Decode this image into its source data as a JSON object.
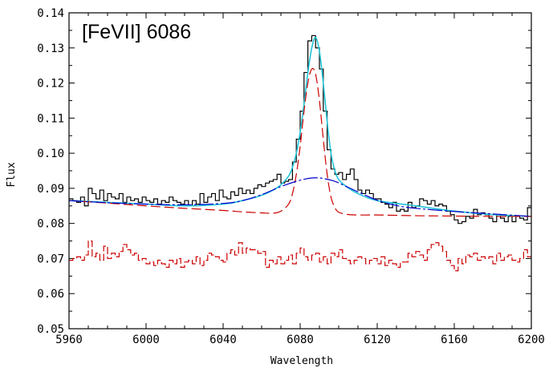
{
  "chart_data": {
    "type": "line",
    "title": "[FeVII] 6086",
    "xlabel": "Wavelength",
    "ylabel": "Flux",
    "xlim": [
      5960,
      6200
    ],
    "ylim": [
      0.05,
      0.14
    ],
    "x_ticks": [
      5960,
      6000,
      6040,
      6080,
      6120,
      6160,
      6200
    ],
    "x_tick_labels": [
      "5960",
      "6000",
      "6040",
      "6080",
      "6120",
      "6160",
      "6200"
    ],
    "y_ticks": [
      0.05,
      0.06,
      0.07,
      0.08,
      0.09,
      0.1,
      0.11,
      0.12,
      0.13,
      0.14
    ],
    "y_tick_labels": [
      "0.05",
      "0.06",
      "0.07",
      "0.08",
      "0.09",
      "0.10",
      "0.11",
      "0.12",
      "0.13",
      "0.14"
    ],
    "grid": false,
    "legend": "none",
    "series": [
      {
        "style": "step",
        "color": "#000000",
        "x": [
          5960,
          5962,
          5964,
          5966,
          5968,
          5970,
          5972,
          5974,
          5976,
          5978,
          5980,
          5982,
          5984,
          5986,
          5988,
          5990,
          5992,
          5994,
          5996,
          5998,
          6000,
          6002,
          6004,
          6006,
          6008,
          6010,
          6012,
          6014,
          6016,
          6018,
          6020,
          6022,
          6024,
          6026,
          6028,
          6030,
          6032,
          6034,
          6036,
          6038,
          6040,
          6042,
          6044,
          6046,
          6048,
          6050,
          6052,
          6054,
          6056,
          6058,
          6060,
          6062,
          6064,
          6066,
          6068,
          6070,
          6072,
          6074,
          6076,
          6078,
          6080,
          6082,
          6084,
          6086,
          6088,
          6090,
          6092,
          6094,
          6096,
          6098,
          6100,
          6102,
          6104,
          6106,
          6108,
          6110,
          6112,
          6114,
          6116,
          6118,
          6120,
          6122,
          6124,
          6126,
          6128,
          6130,
          6132,
          6134,
          6136,
          6138,
          6140,
          6142,
          6144,
          6146,
          6148,
          6150,
          6152,
          6154,
          6156,
          6158,
          6160,
          6162,
          6164,
          6166,
          6168,
          6170,
          6172,
          6174,
          6176,
          6178,
          6180,
          6182,
          6184,
          6186,
          6188,
          6190,
          6192,
          6194,
          6196,
          6198
        ],
        "y": [
          0.087,
          0.0865,
          0.086,
          0.0875,
          0.085,
          0.09,
          0.0885,
          0.087,
          0.0895,
          0.0865,
          0.0885,
          0.0875,
          0.087,
          0.0885,
          0.086,
          0.0875,
          0.0865,
          0.087,
          0.086,
          0.0875,
          0.0865,
          0.086,
          0.087,
          0.0855,
          0.0865,
          0.086,
          0.0875,
          0.0865,
          0.086,
          0.0855,
          0.0865,
          0.085,
          0.0865,
          0.0855,
          0.0885,
          0.086,
          0.0875,
          0.0885,
          0.0865,
          0.0895,
          0.0875,
          0.087,
          0.089,
          0.088,
          0.09,
          0.0885,
          0.0895,
          0.0885,
          0.09,
          0.091,
          0.0905,
          0.0915,
          0.092,
          0.0925,
          0.094,
          0.0915,
          0.092,
          0.0925,
          0.0975,
          0.104,
          0.112,
          0.123,
          0.132,
          0.1335,
          0.13,
          0.124,
          0.112,
          0.101,
          0.0955,
          0.094,
          0.0945,
          0.0925,
          0.094,
          0.0955,
          0.0925,
          0.0895,
          0.0885,
          0.0895,
          0.0885,
          0.087,
          0.087,
          0.086,
          0.0855,
          0.0845,
          0.086,
          0.0835,
          0.084,
          0.0835,
          0.086,
          0.0845,
          0.085,
          0.087,
          0.0865,
          0.0855,
          0.0865,
          0.085,
          0.0855,
          0.085,
          0.0835,
          0.0825,
          0.081,
          0.08,
          0.0805,
          0.082,
          0.0815,
          0.084,
          0.0825,
          0.083,
          0.0825,
          0.0815,
          0.0805,
          0.0825,
          0.0815,
          0.0805,
          0.082,
          0.0805,
          0.082,
          0.0815,
          0.081,
          0.0845
        ]
      },
      {
        "style": "step-dash",
        "color": "#cc0000",
        "x": [
          5960,
          5962,
          5964,
          5966,
          5968,
          5970,
          5972,
          5974,
          5976,
          5978,
          5980,
          5982,
          5984,
          5986,
          5988,
          5990,
          5992,
          5994,
          5996,
          5998,
          6000,
          6002,
          6004,
          6006,
          6008,
          6010,
          6012,
          6014,
          6016,
          6018,
          6020,
          6022,
          6024,
          6026,
          6028,
          6030,
          6032,
          6034,
          6036,
          6038,
          6040,
          6042,
          6044,
          6046,
          6048,
          6050,
          6052,
          6054,
          6056,
          6058,
          6060,
          6062,
          6064,
          6066,
          6068,
          6070,
          6072,
          6074,
          6076,
          6078,
          6080,
          6082,
          6084,
          6086,
          6088,
          6090,
          6092,
          6094,
          6096,
          6098,
          6100,
          6102,
          6104,
          6106,
          6108,
          6110,
          6112,
          6114,
          6116,
          6118,
          6120,
          6122,
          6124,
          6126,
          6128,
          6130,
          6132,
          6134,
          6136,
          6138,
          6140,
          6142,
          6144,
          6146,
          6148,
          6150,
          6152,
          6154,
          6156,
          6158,
          6160,
          6162,
          6164,
          6166,
          6168,
          6170,
          6172,
          6174,
          6176,
          6178,
          6180,
          6182,
          6184,
          6186,
          6188,
          6190,
          6192,
          6194,
          6196,
          6198
        ],
        "y": [
          0.0695,
          0.07,
          0.0705,
          0.0695,
          0.071,
          0.075,
          0.0705,
          0.0715,
          0.0695,
          0.0735,
          0.07,
          0.0715,
          0.0705,
          0.072,
          0.074,
          0.0725,
          0.071,
          0.0715,
          0.0695,
          0.07,
          0.0685,
          0.069,
          0.068,
          0.0695,
          0.0685,
          0.0675,
          0.0695,
          0.0685,
          0.07,
          0.0675,
          0.069,
          0.0695,
          0.0685,
          0.0705,
          0.068,
          0.0695,
          0.0715,
          0.071,
          0.0705,
          0.0695,
          0.069,
          0.0715,
          0.0725,
          0.071,
          0.0745,
          0.0715,
          0.073,
          0.0725,
          0.0725,
          0.0715,
          0.072,
          0.0675,
          0.0695,
          0.0685,
          0.0705,
          0.0685,
          0.0695,
          0.071,
          0.0685,
          0.0715,
          0.073,
          0.0705,
          0.0695,
          0.071,
          0.0715,
          0.069,
          0.0705,
          0.0685,
          0.0715,
          0.0705,
          0.0725,
          0.07,
          0.0695,
          0.0685,
          0.0695,
          0.0705,
          0.07,
          0.0685,
          0.0695,
          0.07,
          0.0685,
          0.0705,
          0.068,
          0.0695,
          0.0685,
          0.0675,
          0.069,
          0.069,
          0.0715,
          0.0705,
          0.072,
          0.071,
          0.0695,
          0.0725,
          0.074,
          0.0745,
          0.0735,
          0.072,
          0.0695,
          0.068,
          0.0665,
          0.07,
          0.0685,
          0.071,
          0.0705,
          0.0715,
          0.0695,
          0.0705,
          0.07,
          0.0705,
          0.0685,
          0.0715,
          0.0695,
          0.0705,
          0.071,
          0.0695,
          0.069,
          0.07,
          0.0725,
          0.0705
        ]
      },
      {
        "style": "smooth",
        "color": "#22c4d8",
        "x": [
          5960,
          5980,
          6000,
          6020,
          6040,
          6050,
          6060,
          6066,
          6070,
          6074,
          6076,
          6078,
          6080,
          6082,
          6084,
          6086,
          6088,
          6090,
          6092,
          6094,
          6096,
          6098,
          6100,
          6104,
          6110,
          6120,
          6140,
          6160,
          6180,
          6200
        ],
        "y": [
          0.0865,
          0.086,
          0.0855,
          0.085,
          0.0855,
          0.0865,
          0.088,
          0.0895,
          0.091,
          0.0935,
          0.096,
          0.1,
          0.106,
          0.114,
          0.123,
          0.13,
          0.133,
          0.129,
          0.12,
          0.109,
          0.1,
          0.095,
          0.0925,
          0.0905,
          0.0885,
          0.0865,
          0.085,
          0.0835,
          0.0825,
          0.082
        ]
      },
      {
        "style": "dash",
        "color": "#cc0000",
        "x": [
          5960,
          5980,
          6000,
          6020,
          6040,
          6050,
          6060,
          6066,
          6070,
          6074,
          6076,
          6078,
          6080,
          6082,
          6084,
          6086,
          6088,
          6090,
          6092,
          6094,
          6096,
          6098,
          6100,
          6104,
          6110,
          6120,
          6140,
          6160,
          6180,
          6200
        ],
        "y": [
          0.0865,
          0.0858,
          0.085,
          0.0843,
          0.0837,
          0.0833,
          0.083,
          0.0829,
          0.0835,
          0.0855,
          0.0885,
          0.094,
          0.102,
          0.112,
          0.12,
          0.124,
          0.1225,
          0.115,
          0.104,
          0.094,
          0.0875,
          0.0845,
          0.0832,
          0.0826,
          0.0824,
          0.0824,
          0.0822,
          0.0821,
          0.082,
          0.082
        ]
      },
      {
        "style": "smooth",
        "color": "#0000cc",
        "x": [
          5960,
          5980,
          6000,
          6020,
          6040,
          6050,
          6060,
          6070,
          6078,
          6084,
          6088,
          6092,
          6098,
          6104,
          6110,
          6120,
          6130,
          6140,
          6160,
          6180,
          6200
        ],
        "y": [
          0.0865,
          0.0859,
          0.0855,
          0.0853,
          0.0857,
          0.0865,
          0.0882,
          0.0905,
          0.092,
          0.0928,
          0.093,
          0.0928,
          0.092,
          0.0905,
          0.089,
          0.0866,
          0.0851,
          0.0843,
          0.0834,
          0.0827,
          0.082
        ]
      }
    ]
  }
}
